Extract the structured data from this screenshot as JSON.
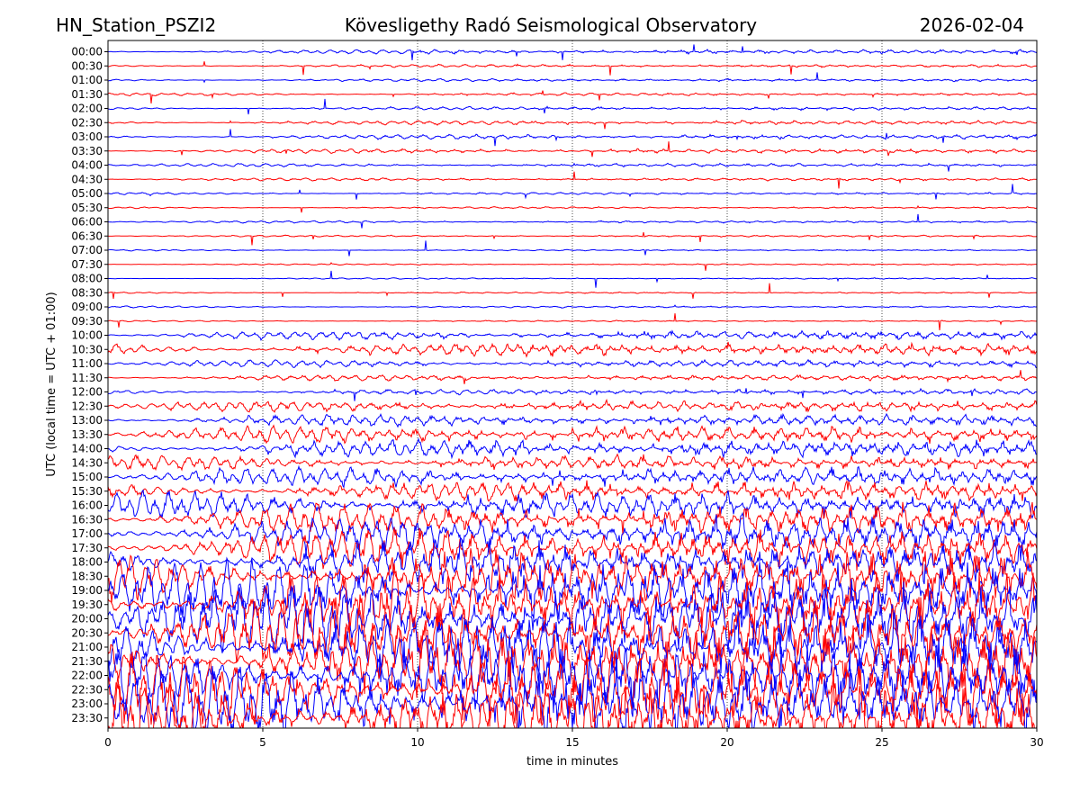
{
  "header": {
    "station": "HN_Station_PSZI2",
    "observatory": "Kövesligethy Radó Seismological Observatory",
    "date": "2026-02-04"
  },
  "chart_data": {
    "type": "line",
    "xlabel": "time in minutes",
    "ylabel": "UTC (local time = UTC + 01:00)",
    "xlim": [
      0,
      30
    ],
    "x_ticks": [
      "0",
      "5",
      "10",
      "15",
      "20",
      "25",
      "30"
    ],
    "x_tick_values": [
      0,
      5,
      10,
      15,
      20,
      25,
      30
    ],
    "vertical_gridlines_at": [
      5,
      10,
      15,
      20,
      25
    ],
    "grid": "dotted vertical",
    "trace_colors": [
      "#0000ff",
      "#ff0000"
    ],
    "traces": [
      {
        "label": "00:00",
        "amp": 0.18
      },
      {
        "label": "00:30",
        "amp": 0.12
      },
      {
        "label": "01:00",
        "amp": 0.12
      },
      {
        "label": "01:30",
        "amp": 0.12
      },
      {
        "label": "02:00",
        "amp": 0.14
      },
      {
        "label": "02:30",
        "amp": 0.18
      },
      {
        "label": "03:00",
        "amp": 0.2
      },
      {
        "label": "03:30",
        "amp": 0.18
      },
      {
        "label": "04:00",
        "amp": 0.14
      },
      {
        "label": "04:30",
        "amp": 0.12
      },
      {
        "label": "05:00",
        "amp": 0.1
      },
      {
        "label": "05:30",
        "amp": 0.08
      },
      {
        "label": "06:00",
        "amp": 0.1
      },
      {
        "label": "06:30",
        "amp": 0.08
      },
      {
        "label": "07:00",
        "amp": 0.06
      },
      {
        "label": "07:30",
        "amp": 0.06
      },
      {
        "label": "08:00",
        "amp": 0.06
      },
      {
        "label": "08:30",
        "amp": 0.06
      },
      {
        "label": "09:00",
        "amp": 0.08
      },
      {
        "label": "09:30",
        "amp": 0.06
      },
      {
        "label": "10:00",
        "amp": 0.35
      },
      {
        "label": "10:30",
        "amp": 0.55
      },
      {
        "label": "11:00",
        "amp": 0.3
      },
      {
        "label": "11:30",
        "amp": 0.25
      },
      {
        "label": "12:00",
        "amp": 0.25
      },
      {
        "label": "12:30",
        "amp": 0.45
      },
      {
        "label": "13:00",
        "amp": 0.5
      },
      {
        "label": "13:30",
        "amp": 0.7
      },
      {
        "label": "14:00",
        "amp": 0.75
      },
      {
        "label": "14:30",
        "amp": 0.6
      },
      {
        "label": "15:00",
        "amp": 0.8
      },
      {
        "label": "15:30",
        "amp": 0.85
      },
      {
        "label": "16:00",
        "amp": 1.1
      },
      {
        "label": "16:30",
        "amp": 1.3
      },
      {
        "label": "17:00",
        "amp": 1.5
      },
      {
        "label": "17:30",
        "amp": 1.6
      },
      {
        "label": "18:00",
        "amp": 1.8
      },
      {
        "label": "18:30",
        "amp": 2.1
      },
      {
        "label": "19:00",
        "amp": 2.4
      },
      {
        "label": "19:30",
        "amp": 2.6
      },
      {
        "label": "20:00",
        "amp": 2.8
      },
      {
        "label": "20:30",
        "amp": 2.8
      },
      {
        "label": "21:00",
        "amp": 2.9
      },
      {
        "label": "21:30",
        "amp": 2.9
      },
      {
        "label": "22:00",
        "amp": 3.0
      },
      {
        "label": "22:30",
        "amp": 3.0
      },
      {
        "label": "23:00",
        "amp": 3.0
      },
      {
        "label": "23:30",
        "amp": 3.0
      }
    ]
  }
}
